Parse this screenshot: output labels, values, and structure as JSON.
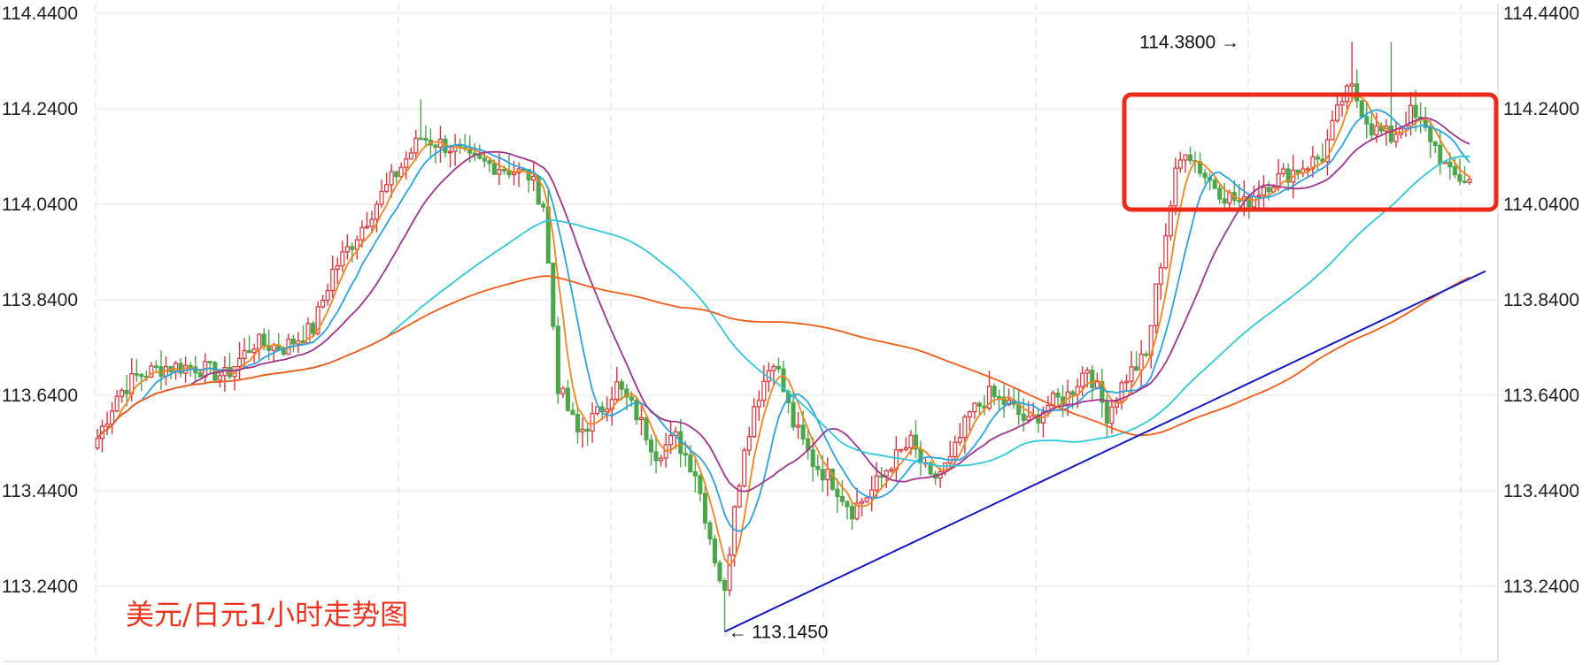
{
  "chart_data": {
    "type": "candlestick",
    "title": "美元/日元1小时走势图",
    "ylim": [
      113.1,
      114.44
    ],
    "y_ticks": [
      "114.4400",
      "114.2400",
      "114.0400",
      "113.8400",
      "113.6400",
      "113.4400",
      "113.2400"
    ],
    "y_tick_values": [
      114.44,
      114.24,
      114.04,
      113.84,
      113.64,
      113.44,
      113.24
    ],
    "grid": true,
    "axis_side": "both",
    "colors": {
      "up": "#e0323b",
      "down": "#4aa84a",
      "ma_fast": "#f5841f",
      "ma_mid": "#2aa3e6",
      "ma_slow": "#a3338f",
      "ma_longer": "#2ec9dc",
      "ma_longest": "#f25c19",
      "trendline": "#1419c7",
      "highlight_box": "#ee2a1b"
    },
    "annotations": [
      {
        "label": "114.3800",
        "value": 114.38,
        "arrow": "right",
        "note": "high"
      },
      {
        "label": "113.1450",
        "value": 113.145,
        "arrow": "left",
        "note": "low"
      }
    ],
    "candles_summary": [
      {
        "segment": "open",
        "approx_open": 113.55,
        "approx_close": 113.68
      },
      {
        "segment": "rally",
        "approx_high": 114.26
      },
      {
        "segment": "drop",
        "approx_low": 113.145
      },
      {
        "segment": "recovery",
        "approx_high": 113.76
      },
      {
        "segment": "breakout",
        "approx_high": 114.38
      },
      {
        "segment": "last",
        "approx_close": 114.1
      }
    ]
  }
}
